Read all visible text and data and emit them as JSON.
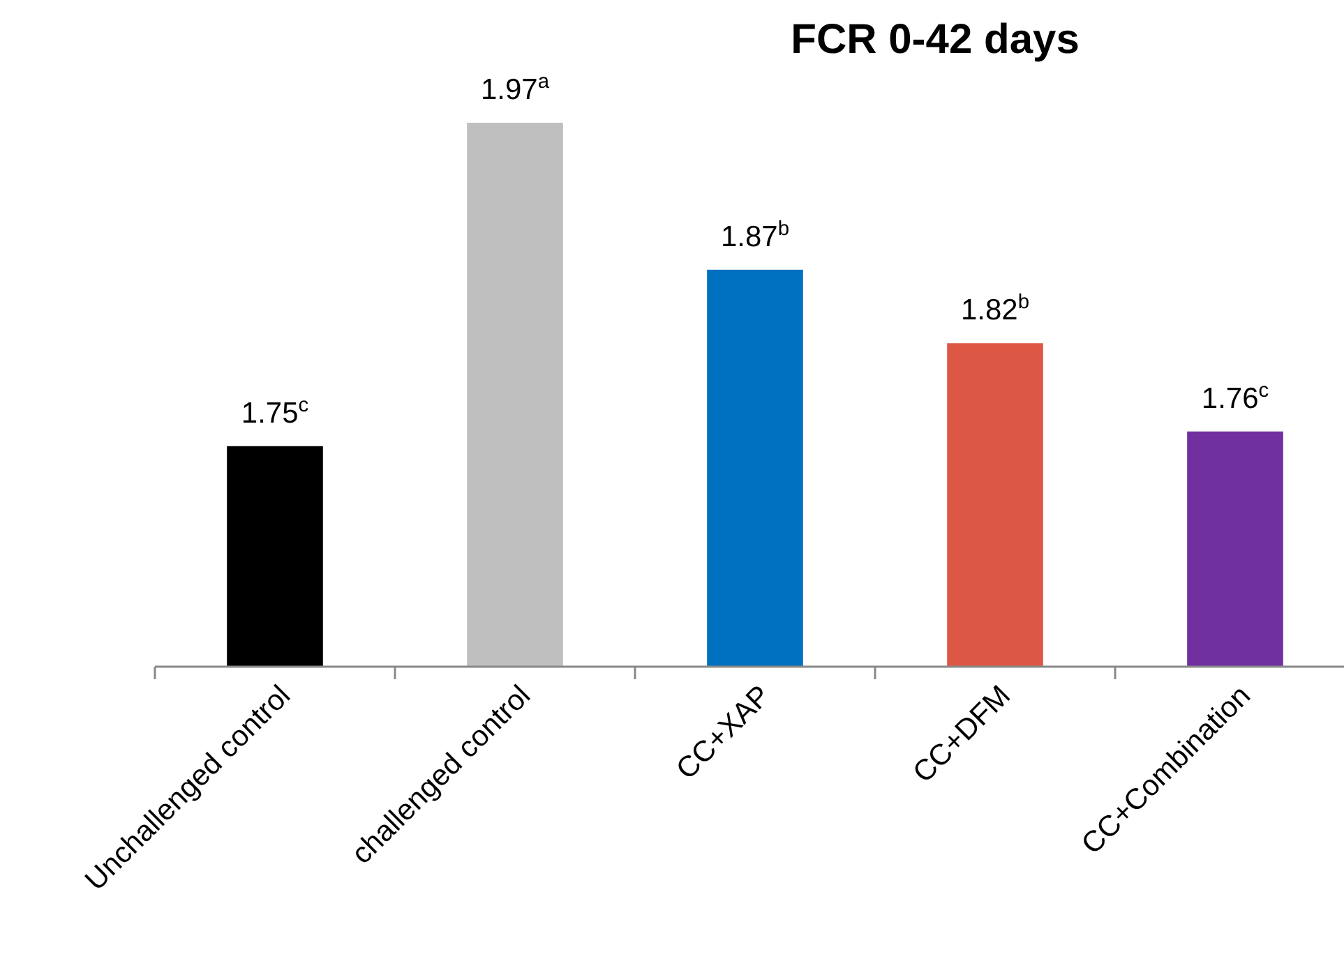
{
  "chart_data": {
    "type": "bar",
    "title": "FCR 0-42 days",
    "categories": [
      "Unchallenged control",
      "challenged control",
      "CC+XAP",
      "CC+DFM",
      "CC+Combination"
    ],
    "values": [
      1.75,
      1.97,
      1.87,
      1.82,
      1.76
    ],
    "colors": [
      "#000000",
      "#bfbfbf",
      "#0070c0",
      "#dd5844",
      "#7030a0"
    ],
    "value_labels": [
      "1.75$^{c}$",
      "1.97$^{a}$",
      "1.87$^{b}$",
      "1.82$^{b}$",
      "1.76$^{c}$"
    ],
    "ylim": [
      1.6,
      1.97
    ],
    "tick_labels": "x"
  }
}
